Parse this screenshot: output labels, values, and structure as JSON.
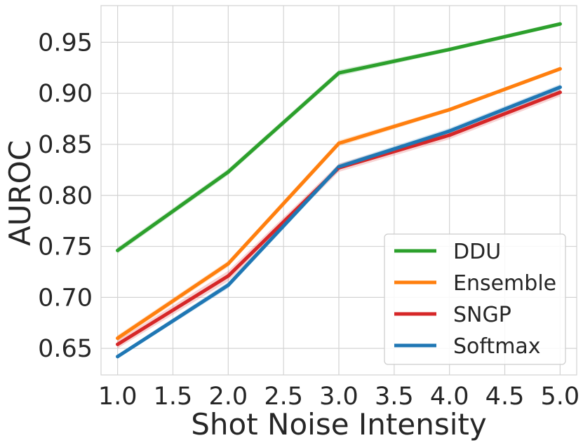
{
  "chart_data": {
    "type": "line",
    "title": "",
    "xlabel": "Shot Noise Intensity",
    "ylabel": "AUROC",
    "x": [
      1.0,
      2.0,
      3.0,
      4.0,
      5.0
    ],
    "xlim": [
      0.85,
      5.15
    ],
    "ylim": [
      0.624,
      0.986
    ],
    "xticks": [
      1.0,
      1.5,
      2.0,
      2.5,
      3.0,
      3.5,
      4.0,
      4.5,
      5.0
    ],
    "xtick_labels": [
      "1.0",
      "1.5",
      "2.0",
      "2.5",
      "3.0",
      "3.5",
      "4.0",
      "4.5",
      "5.0"
    ],
    "yticks": [
      0.65,
      0.7,
      0.75,
      0.8,
      0.85,
      0.9,
      0.95
    ],
    "ytick_labels": [
      "0.65",
      "0.70",
      "0.75",
      "0.80",
      "0.85",
      "0.90",
      "0.95"
    ],
    "grid": true,
    "legend_position": "bottom-right",
    "series": [
      {
        "name": "DDU",
        "color": "#2ca02c",
        "values": [
          0.746,
          0.823,
          0.92,
          0.943,
          0.968
        ],
        "band": [
          0.003,
          0.003,
          0.003,
          0.002,
          0.002
        ]
      },
      {
        "name": "Ensemble",
        "color": "#ff7f0e",
        "values": [
          0.66,
          0.733,
          0.851,
          0.884,
          0.924
        ],
        "band": [
          0.003,
          0.003,
          0.003,
          0.002,
          0.002
        ]
      },
      {
        "name": "SNGP",
        "color": "#d62728",
        "values": [
          0.654,
          0.721,
          0.827,
          0.859,
          0.901
        ],
        "band": [
          0.004,
          0.005,
          0.004,
          0.004,
          0.004
        ]
      },
      {
        "name": "Softmax",
        "color": "#1f77b4",
        "values": [
          0.642,
          0.712,
          0.828,
          0.863,
          0.906
        ],
        "band": [
          0.002,
          0.003,
          0.003,
          0.003,
          0.003
        ]
      }
    ]
  }
}
